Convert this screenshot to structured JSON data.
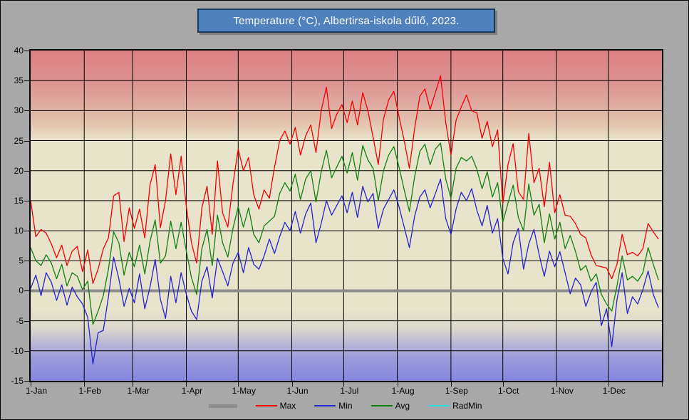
{
  "title": "Temperature (°C), Albertirsa-iskola dűlő, 2023.",
  "canvas": {
    "background": "#a8a8a8",
    "border": "#000000"
  },
  "title_bar": {
    "fill": "#4f81bd",
    "border": "#17375e",
    "text_color": "#ffffff"
  },
  "chart_data": {
    "type": "line",
    "title": "Temperature (°C), Albertirsa-iskola dűlő, 2023.",
    "x_total_days": 365,
    "sample_step_days": 3,
    "x_ticks": [
      {
        "label": "1-Jan",
        "day": 0
      },
      {
        "label": "1-Feb",
        "day": 31
      },
      {
        "label": "1-Mar",
        "day": 59
      },
      {
        "label": "1-Apr",
        "day": 90
      },
      {
        "label": "1-May",
        "day": 120
      },
      {
        "label": "1-Jun",
        "day": 151
      },
      {
        "label": "1-Jul",
        "day": 181
      },
      {
        "label": "1-Aug",
        "day": 212
      },
      {
        "label": "1-Sep",
        "day": 243
      },
      {
        "label": "1-Oct",
        "day": 273
      },
      {
        "label": "1-Nov",
        "day": 304
      },
      {
        "label": "1-Dec",
        "day": 334
      },
      {
        "label": "",
        "day": 365
      }
    ],
    "ylim": [
      -15,
      40
    ],
    "y_ticks": [
      40,
      35,
      30,
      25,
      20,
      15,
      10,
      5,
      0,
      -5,
      -10,
      -15
    ],
    "grid_color": "#000000",
    "zero_line": {
      "value": 0,
      "color": "#8c8c8c",
      "width": 4
    },
    "plot_gradient": [
      {
        "pos": 0,
        "color": "#db8084"
      },
      {
        "pos": 9,
        "color": "#dd9191"
      },
      {
        "pos": 16,
        "color": "#dfa9a0"
      },
      {
        "pos": 22,
        "color": "#e3c3ad"
      },
      {
        "pos": 26,
        "color": "#e7ddc4"
      },
      {
        "pos": 28,
        "color": "#e8e3cb"
      },
      {
        "pos": 78,
        "color": "#e8e3cb"
      },
      {
        "pos": 84,
        "color": "#dcd8cc"
      },
      {
        "pos": 88,
        "color": "#bebcd4"
      },
      {
        "pos": 93,
        "color": "#9c9cdc"
      },
      {
        "pos": 100,
        "color": "#8486de"
      }
    ],
    "series": [
      {
        "name": "Max",
        "color": "#f40000",
        "width": 1.3,
        "values": [
          15.0,
          9.0,
          10.2,
          9.6,
          7.8,
          5.5,
          7.6,
          4.2,
          6.6,
          7.4,
          3.2,
          6.8,
          1.2,
          3.6,
          7.0,
          8.8,
          15.8,
          16.4,
          8.2,
          13.8,
          10.4,
          13.6,
          8.8,
          17.6,
          21.0,
          10.5,
          15.0,
          22.8,
          16.0,
          22.4,
          14.0,
          8.0,
          4.6,
          13.8,
          17.4,
          9.4,
          21.6,
          13.0,
          10.6,
          17.8,
          23.6,
          20.0,
          22.2,
          16.0,
          13.6,
          16.8,
          15.4,
          20.6,
          25.0,
          26.6,
          24.4,
          27.2,
          22.6,
          25.8,
          27.6,
          23.0,
          30.0,
          33.9,
          27.0,
          29.4,
          31.0,
          28.0,
          31.6,
          27.6,
          33.0,
          30.0,
          25.6,
          21.0,
          28.6,
          31.8,
          33.2,
          29.0,
          25.0,
          20.4,
          27.0,
          32.4,
          33.6,
          30.2,
          33.0,
          35.8,
          28.0,
          22.6,
          28.4,
          30.6,
          32.6,
          30.0,
          29.6,
          25.4,
          28.2,
          24.0,
          26.8,
          14.5,
          21.0,
          24.5,
          16.5,
          15.2,
          26.2,
          18.0,
          20.4,
          14.0,
          21.4,
          13.0,
          16.0,
          12.6,
          12.4,
          11.2,
          9.4,
          8.8,
          6.0,
          4.2,
          4.0,
          3.8,
          2.0,
          4.4,
          9.4,
          6.0,
          6.4,
          5.8,
          7.0,
          11.2,
          9.8,
          8.6
        ]
      },
      {
        "name": "Min",
        "color": "#2323cf",
        "width": 1.3,
        "values": [
          0.4,
          2.6,
          -0.8,
          3.0,
          1.4,
          -1.6,
          1.0,
          -2.4,
          0.6,
          -1.0,
          -2.2,
          -4.4,
          -12.2,
          -7.0,
          -6.6,
          -1.0,
          5.6,
          2.0,
          -2.6,
          0.4,
          -2.0,
          2.8,
          -3.0,
          0.6,
          5.2,
          -1.4,
          -4.6,
          2.4,
          -2.0,
          3.0,
          -0.6,
          -3.4,
          -4.8,
          1.6,
          4.0,
          -1.2,
          5.4,
          3.2,
          0.8,
          4.6,
          6.4,
          3.0,
          7.2,
          4.4,
          3.6,
          5.8,
          8.6,
          6.2,
          9.0,
          11.4,
          10.0,
          13.2,
          9.6,
          12.8,
          14.6,
          8.0,
          11.2,
          15.0,
          12.6,
          14.2,
          15.8,
          13.0,
          16.4,
          12.2,
          17.4,
          14.8,
          16.2,
          10.4,
          13.6,
          15.2,
          16.8,
          14.0,
          10.6,
          7.2,
          12.4,
          15.6,
          16.8,
          13.8,
          16.2,
          18.6,
          12.0,
          9.4,
          13.6,
          16.4,
          15.0,
          17.0,
          13.4,
          10.8,
          14.2,
          9.6,
          12.0,
          5.4,
          2.8,
          8.0,
          10.4,
          3.6,
          7.8,
          10.2,
          6.0,
          2.4,
          6.6,
          4.0,
          6.5,
          3.0,
          -0.5,
          2.1,
          1.0,
          -2.6,
          -0.2,
          1.4,
          -5.8,
          -3.0,
          -9.3,
          -1.5,
          3.0,
          -3.8,
          -1.0,
          -2.2,
          0.2,
          3.3,
          -0.6,
          -2.8
        ]
      },
      {
        "name": "Avg",
        "color": "#0f820f",
        "width": 1.3,
        "values": [
          7.2,
          5.0,
          4.2,
          6.0,
          4.6,
          2.0,
          4.4,
          0.8,
          3.0,
          2.4,
          0.2,
          1.6,
          -5.6,
          -3.4,
          -0.8,
          3.6,
          9.8,
          8.0,
          2.6,
          6.4,
          4.0,
          7.6,
          2.8,
          8.2,
          11.8,
          4.6,
          5.8,
          11.6,
          7.0,
          11.4,
          6.6,
          2.2,
          -0.6,
          7.0,
          10.2,
          4.2,
          12.6,
          8.0,
          5.6,
          10.4,
          14.0,
          10.6,
          13.8,
          9.4,
          8.0,
          10.8,
          11.6,
          12.4,
          16.2,
          18.0,
          16.6,
          19.4,
          15.2,
          18.6,
          20.0,
          14.8,
          19.8,
          23.4,
          18.8,
          20.6,
          22.4,
          19.6,
          23.0,
          18.4,
          24.2,
          21.8,
          20.4,
          15.0,
          20.0,
          22.6,
          24.0,
          20.6,
          16.8,
          13.2,
          19.0,
          23.2,
          24.4,
          21.0,
          23.6,
          24.6,
          18.6,
          15.4,
          20.4,
          22.2,
          21.6,
          22.4,
          20.2,
          17.0,
          19.8,
          15.6,
          18.0,
          11.4,
          14.6,
          17.6,
          12.2,
          10.0,
          17.8,
          12.6,
          14.4,
          8.0,
          12.8,
          8.6,
          11.4,
          7.0,
          9.2,
          6.6,
          3.4,
          4.2,
          1.6,
          2.8,
          -0.6,
          -2.2,
          -3.4,
          0.8,
          5.8,
          1.8,
          2.4,
          1.6,
          3.0,
          7.2,
          4.4,
          1.8
        ]
      },
      {
        "name": "RadMin",
        "color": "#2adede",
        "width": 1.3,
        "values": []
      }
    ],
    "legend": [
      {
        "label": "",
        "color": "#8c8c8c",
        "sample_width": 40,
        "sample_height": 5
      },
      {
        "label": "Max",
        "color": "#f40000",
        "sample_width": 30,
        "sample_height": 2
      },
      {
        "label": "Min",
        "color": "#2323cf",
        "sample_width": 30,
        "sample_height": 2
      },
      {
        "label": "Avg",
        "color": "#0f820f",
        "sample_width": 30,
        "sample_height": 2
      },
      {
        "label": "RadMin",
        "color": "#2adede",
        "sample_width": 30,
        "sample_height": 2
      }
    ]
  }
}
